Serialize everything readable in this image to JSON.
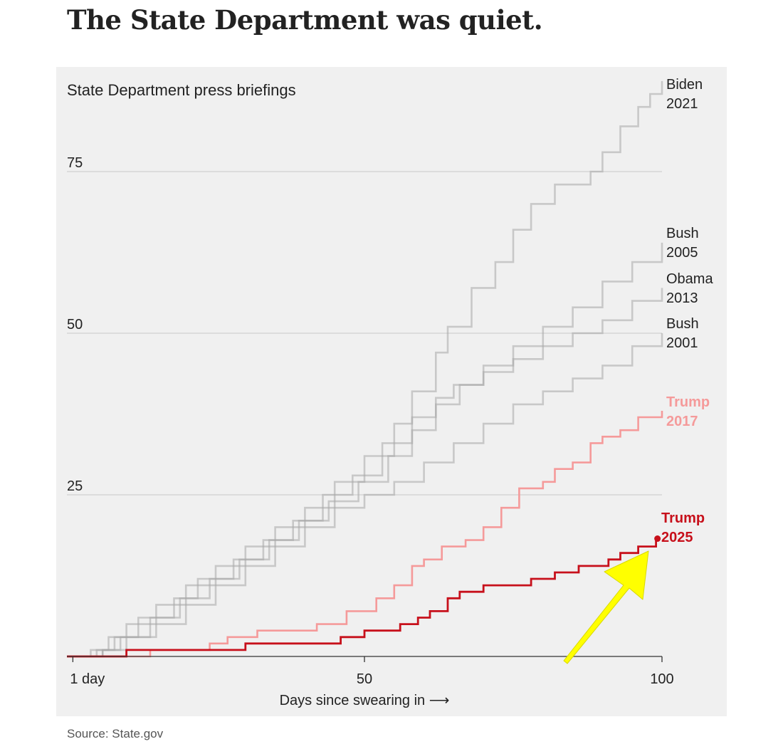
{
  "headline": "The State Department was quiet.",
  "source": "Source: State.gov",
  "colors": {
    "gray": "#a8a8a8",
    "trump2017": "#f59a9a",
    "trump2025": "#c7101b",
    "arrow": "#ffff00"
  },
  "chart_data": {
    "type": "line",
    "step": true,
    "title": "State Department press briefings",
    "xlabel": "Days since swearing in ⟶",
    "x_ticks": [
      {
        "value": 1,
        "label": "1 day"
      },
      {
        "value": 50,
        "label": "50"
      },
      {
        "value": 100,
        "label": "100"
      }
    ],
    "y_ticks": [
      {
        "value": 25,
        "label": "25"
      },
      {
        "value": 50,
        "label": "50"
      },
      {
        "value": 75,
        "label": "75"
      }
    ],
    "xlim": [
      0,
      100
    ],
    "ylim": [
      0,
      90
    ],
    "series": [
      {
        "name": "Biden 2021",
        "label_lines": [
          "Biden",
          "2021"
        ],
        "style": "gray",
        "end_dot": false,
        "points": [
          [
            0,
            0
          ],
          [
            4,
            1
          ],
          [
            7,
            3
          ],
          [
            10,
            5
          ],
          [
            15,
            8
          ],
          [
            20,
            11
          ],
          [
            25,
            14
          ],
          [
            30,
            17
          ],
          [
            35,
            20
          ],
          [
            40,
            23
          ],
          [
            45,
            27
          ],
          [
            50,
            31
          ],
          [
            55,
            36
          ],
          [
            58,
            41
          ],
          [
            62,
            47
          ],
          [
            64,
            51
          ],
          [
            68,
            57
          ],
          [
            72,
            61
          ],
          [
            75,
            66
          ],
          [
            78,
            70
          ],
          [
            82,
            73
          ],
          [
            88,
            75
          ],
          [
            90,
            78
          ],
          [
            93,
            82
          ],
          [
            96,
            85
          ],
          [
            98,
            87
          ],
          [
            100,
            89
          ]
        ]
      },
      {
        "name": "Bush 2005",
        "label_lines": [
          "Bush",
          "2005"
        ],
        "style": "gray",
        "end_dot": false,
        "points": [
          [
            0,
            0
          ],
          [
            5,
            1
          ],
          [
            8,
            3
          ],
          [
            12,
            6
          ],
          [
            18,
            9
          ],
          [
            22,
            12
          ],
          [
            28,
            15
          ],
          [
            33,
            18
          ],
          [
            38,
            21
          ],
          [
            43,
            25
          ],
          [
            48,
            28
          ],
          [
            53,
            33
          ],
          [
            58,
            37
          ],
          [
            62,
            40
          ],
          [
            65,
            42
          ],
          [
            70,
            45
          ],
          [
            75,
            48
          ],
          [
            80,
            51
          ],
          [
            85,
            54
          ],
          [
            90,
            58
          ],
          [
            95,
            61
          ],
          [
            100,
            64
          ]
        ]
      },
      {
        "name": "Obama 2013",
        "label_lines": [
          "Obama",
          "2013"
        ],
        "style": "gray",
        "end_dot": false,
        "points": [
          [
            0,
            0
          ],
          [
            6,
            1
          ],
          [
            9,
            3
          ],
          [
            14,
            6
          ],
          [
            19,
            9
          ],
          [
            24,
            12
          ],
          [
            29,
            15
          ],
          [
            34,
            18
          ],
          [
            39,
            21
          ],
          [
            44,
            24
          ],
          [
            49,
            27
          ],
          [
            54,
            31
          ],
          [
            58,
            35
          ],
          [
            62,
            39
          ],
          [
            66,
            42
          ],
          [
            70,
            44
          ],
          [
            75,
            46
          ],
          [
            80,
            48
          ],
          [
            85,
            50
          ],
          [
            90,
            52
          ],
          [
            95,
            55
          ],
          [
            100,
            57
          ]
        ]
      },
      {
        "name": "Bush 2001",
        "label_lines": [
          "Bush",
          "2001"
        ],
        "style": "gray",
        "end_dot": false,
        "points": [
          [
            0,
            0
          ],
          [
            6,
            1
          ],
          [
            10,
            3
          ],
          [
            15,
            5
          ],
          [
            20,
            8
          ],
          [
            25,
            11
          ],
          [
            30,
            14
          ],
          [
            35,
            17
          ],
          [
            40,
            20
          ],
          [
            45,
            23
          ],
          [
            50,
            25
          ],
          [
            55,
            27
          ],
          [
            60,
            30
          ],
          [
            65,
            33
          ],
          [
            70,
            36
          ],
          [
            75,
            39
          ],
          [
            80,
            41
          ],
          [
            85,
            43
          ],
          [
            90,
            45
          ],
          [
            95,
            48
          ],
          [
            100,
            50
          ]
        ]
      },
      {
        "name": "Trump 2017",
        "label_lines": [
          "Trump",
          "2017"
        ],
        "style": "trump2017",
        "end_dot": false,
        "points": [
          [
            0,
            0
          ],
          [
            14,
            1
          ],
          [
            24,
            2
          ],
          [
            27,
            3
          ],
          [
            32,
            4
          ],
          [
            42,
            5
          ],
          [
            47,
            7
          ],
          [
            52,
            9
          ],
          [
            55,
            11
          ],
          [
            58,
            14
          ],
          [
            60,
            15
          ],
          [
            63,
            17
          ],
          [
            67,
            18
          ],
          [
            70,
            20
          ],
          [
            73,
            23
          ],
          [
            76,
            26
          ],
          [
            80,
            27
          ],
          [
            82,
            29
          ],
          [
            85,
            30
          ],
          [
            88,
            33
          ],
          [
            90,
            34
          ],
          [
            93,
            35
          ],
          [
            96,
            37
          ],
          [
            100,
            38
          ]
        ]
      },
      {
        "name": "Trump 2025",
        "label_lines": [
          "Trump",
          "2025"
        ],
        "style": "trump2025",
        "end_dot": true,
        "points": [
          [
            0,
            0
          ],
          [
            10,
            1
          ],
          [
            30,
            2
          ],
          [
            46,
            3
          ],
          [
            50,
            4
          ],
          [
            56,
            5
          ],
          [
            59,
            6
          ],
          [
            61,
            7
          ],
          [
            64,
            9
          ],
          [
            66,
            10
          ],
          [
            70,
            11
          ],
          [
            78,
            12
          ],
          [
            82,
            13
          ],
          [
            86,
            14
          ],
          [
            91,
            15
          ],
          [
            93,
            16
          ],
          [
            96,
            17
          ],
          [
            99,
            18
          ]
        ]
      }
    ]
  }
}
